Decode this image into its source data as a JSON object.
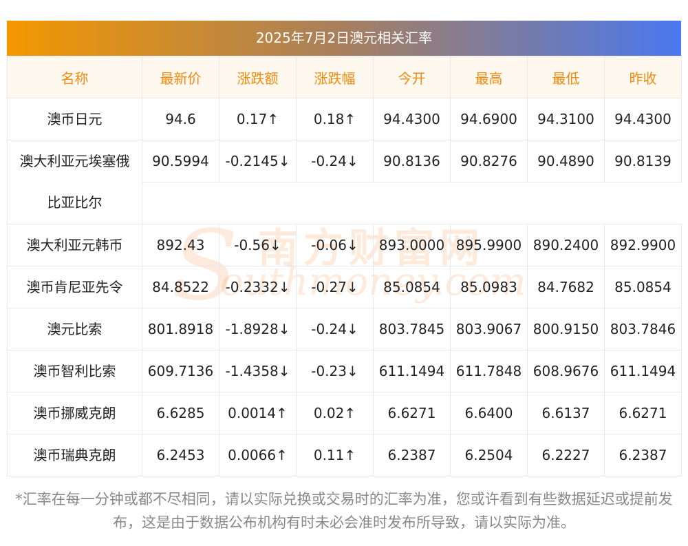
{
  "title": "2025年7月2日澳元相关汇率",
  "watermark": {
    "cn": "南方财富网",
    "en": "outhmoney.com",
    "s": "S"
  },
  "headers": [
    "名称",
    "最新价",
    "涨跌额",
    "涨跌幅",
    "今开",
    "最高",
    "最低",
    "昨收"
  ],
  "colors": {
    "up": "#e8001c",
    "down": "#118a2a",
    "header_text": "#f08a10"
  },
  "rows": [
    {
      "name": "澳币日元",
      "latest": "94.6",
      "change": "0.17↑",
      "pct": "0.18↑",
      "open": "94.4300",
      "high": "94.6900",
      "low": "94.3100",
      "prev": "94.4300",
      "dir": "up"
    },
    {
      "name": "澳大利亚元埃塞俄比亚比尔",
      "latest": "90.5994",
      "change": "-0.2145↓",
      "pct": "-0.24↓",
      "open": "90.8136",
      "high": "90.8276",
      "low": "90.4890",
      "prev": "90.8139",
      "dir": "down"
    },
    {
      "name": "澳大利亚元韩币",
      "latest": "892.43",
      "change": "-0.56↓",
      "pct": "-0.06↓",
      "open": "893.0000",
      "high": "895.9900",
      "low": "890.2400",
      "prev": "892.9900",
      "dir": "down"
    },
    {
      "name": "澳币肯尼亚先令",
      "latest": "84.8522",
      "change": "-0.2332↓",
      "pct": "-0.27↓",
      "open": "85.0854",
      "high": "85.0983",
      "low": "84.7682",
      "prev": "85.0854",
      "dir": "down"
    },
    {
      "name": "澳元比索",
      "latest": "801.8918",
      "change": "-1.8928↓",
      "pct": "-0.24↓",
      "open": "803.7845",
      "high": "803.9067",
      "low": "800.9150",
      "prev": "803.7846",
      "dir": "down"
    },
    {
      "name": "澳币智利比索",
      "latest": "609.7136",
      "change": "-1.4358↓",
      "pct": "-0.23↓",
      "open": "611.1494",
      "high": "611.7848",
      "low": "608.9676",
      "prev": "611.1494",
      "dir": "down"
    },
    {
      "name": "澳币挪威克朗",
      "latest": "6.6285",
      "change": "0.0014↑",
      "pct": "0.02↑",
      "open": "6.6271",
      "high": "6.6400",
      "low": "6.6137",
      "prev": "6.6271",
      "dir": "up"
    },
    {
      "name": "澳币瑞典克朗",
      "latest": "6.2453",
      "change": "0.0066↑",
      "pct": "0.11↑",
      "open": "6.2387",
      "high": "6.2504",
      "low": "6.2227",
      "prev": "6.2387",
      "dir": "up"
    }
  ],
  "footnote": "*汇率在每一分钟或都不尽相同，请以实际兑换或交易时的汇率为准，您或许看到有些数据延迟或提前发布，这是由于数据公布机构有时未必会准时发布所导致，请以实际为准。"
}
